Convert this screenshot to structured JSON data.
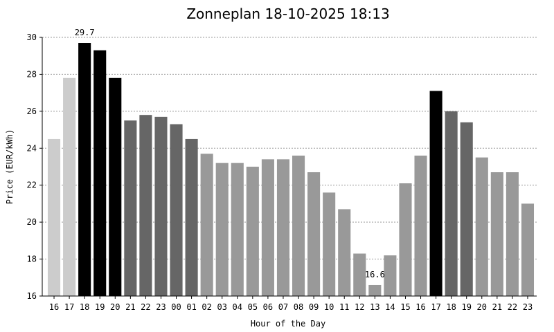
{
  "chart_data": {
    "type": "bar",
    "title": "Zonneplan 18-10-2025 18:13",
    "xlabel": "Hour of the Day",
    "ylabel": "Price (EUR/kWh)",
    "ylim": [
      16,
      30
    ],
    "yticks": [
      "16",
      "18",
      "20",
      "22",
      "24",
      "26",
      "28",
      "30"
    ],
    "grid": true,
    "categories": [
      "16",
      "17",
      "18",
      "19",
      "20",
      "21",
      "22",
      "23",
      "00",
      "01",
      "02",
      "03",
      "04",
      "05",
      "06",
      "07",
      "08",
      "09",
      "10",
      "11",
      "12",
      "13",
      "14",
      "15",
      "16",
      "17",
      "18",
      "19",
      "20",
      "21",
      "22",
      "23"
    ],
    "values": [
      24.5,
      27.8,
      29.7,
      29.3,
      27.8,
      25.5,
      25.8,
      25.7,
      25.3,
      24.5,
      23.7,
      23.2,
      23.2,
      23.0,
      23.4,
      23.4,
      23.6,
      22.7,
      21.6,
      20.7,
      18.3,
      16.6,
      18.2,
      22.1,
      23.6,
      27.1,
      26.0,
      25.4,
      23.5,
      22.7,
      22.7,
      21.0
    ],
    "bar_colors": [
      "#cccccc",
      "#cccccc",
      "#000000",
      "#000000",
      "#000000",
      "#666666",
      "#666666",
      "#666666",
      "#666666",
      "#666666",
      "#999999",
      "#999999",
      "#999999",
      "#999999",
      "#999999",
      "#999999",
      "#999999",
      "#999999",
      "#999999",
      "#999999",
      "#999999",
      "#999999",
      "#999999",
      "#999999",
      "#999999",
      "#000000",
      "#666666",
      "#666666",
      "#999999",
      "#999999",
      "#999999",
      "#999999"
    ],
    "annotations": [
      {
        "index": 2,
        "text": "29.7"
      },
      {
        "index": 21,
        "text": "16.6"
      }
    ]
  }
}
